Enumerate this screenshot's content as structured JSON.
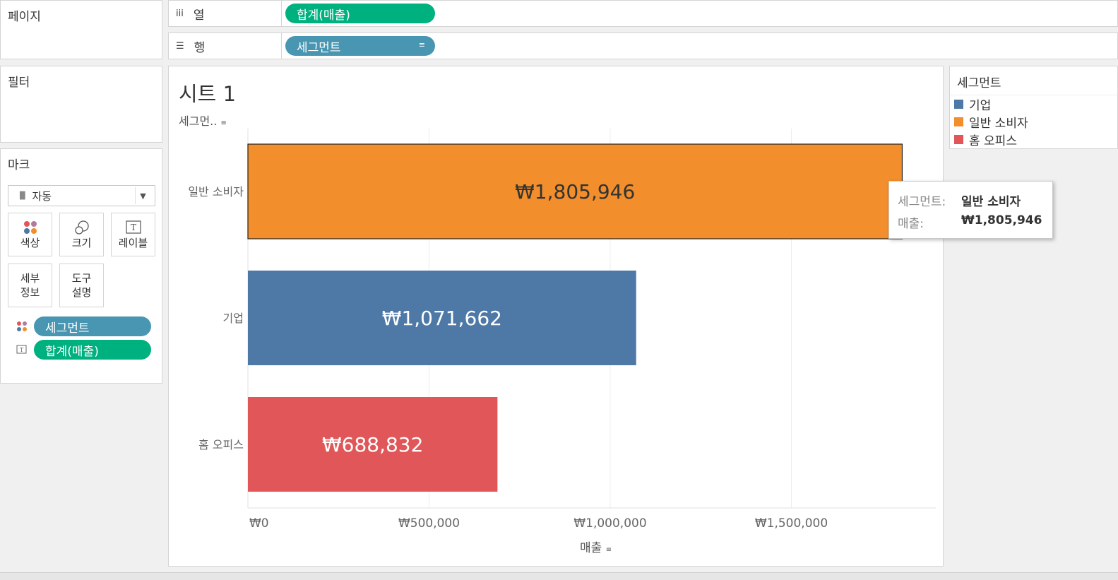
{
  "pages_panel": {
    "title": "페이지"
  },
  "filters_panel": {
    "title": "필터"
  },
  "marks_panel": {
    "title": "마크",
    "mark_type": "자동",
    "buttons": {
      "color": "색상",
      "size": "크기",
      "label": "레이블",
      "detail_line1": "세부",
      "detail_line2": "정보",
      "tooltip_line1": "도구",
      "tooltip_line2": "설명"
    },
    "pills": [
      {
        "label": "세그먼트",
        "type": "color"
      },
      {
        "label": "합계(매출)",
        "type": "label"
      }
    ]
  },
  "shelves": {
    "columns": {
      "label": "열",
      "pill": "합계(매출)"
    },
    "rows": {
      "label": "행",
      "pill": "세그먼트"
    }
  },
  "sheet": {
    "title": "시트 1",
    "row_header": "세그먼..",
    "x_axis_title": "매출"
  },
  "legend": {
    "title": "세그먼트",
    "items": [
      {
        "label": "기업",
        "color": "#4e79a7"
      },
      {
        "label": "일반 소비자",
        "color": "#f28e2b"
      },
      {
        "label": "홈 오피스",
        "color": "#e15759"
      }
    ]
  },
  "tooltip": {
    "field1_label": "세그먼트:",
    "field1_value": "일반 소비자",
    "field2_label": "매출:",
    "field2_value": "₩1,805,946"
  },
  "chart_data": {
    "type": "bar",
    "orientation": "horizontal",
    "title": "시트 1",
    "xlabel": "매출",
    "ylabel": "세그먼트",
    "xlim": [
      0,
      1900000
    ],
    "x_ticks": [
      0,
      500000,
      1000000,
      1500000
    ],
    "x_tick_labels": [
      "₩0",
      "₩500,000",
      "₩1,000,000",
      "₩1,500,000"
    ],
    "categories": [
      "일반 소비자",
      "기업",
      "홈 오피스"
    ],
    "values": [
      1805946,
      1071662,
      688832
    ],
    "value_labels": [
      "₩1,805,946",
      "₩1,071,662",
      "₩688,832"
    ],
    "colors": [
      "#f28e2b",
      "#4e79a7",
      "#e15759"
    ],
    "highlighted": "일반 소비자"
  }
}
